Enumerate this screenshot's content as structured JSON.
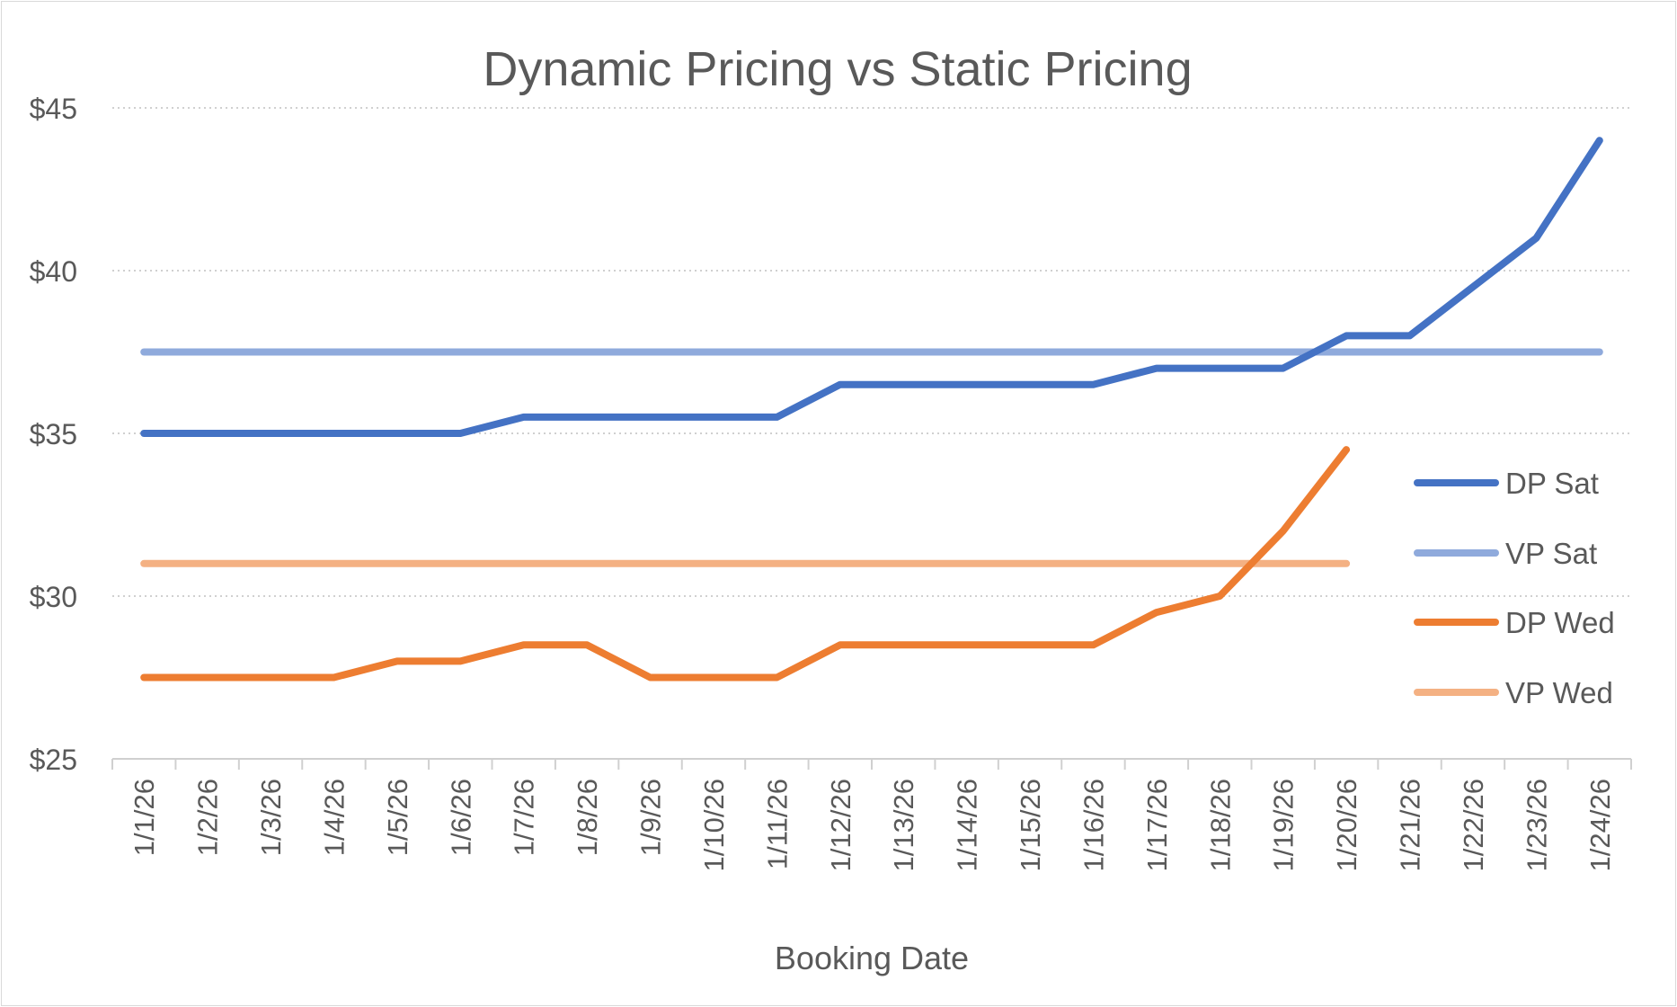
{
  "chart_data": {
    "type": "line",
    "title": "Dynamic Pricing vs Static Pricing",
    "xlabel": "Booking Date",
    "ylabel": "",
    "categories": [
      "1/1/26",
      "1/2/26",
      "1/3/26",
      "1/4/26",
      "1/5/26",
      "1/6/26",
      "1/7/26",
      "1/8/26",
      "1/9/26",
      "1/10/26",
      "1/11/26",
      "1/12/26",
      "1/13/26",
      "1/14/26",
      "1/15/26",
      "1/16/26",
      "1/17/26",
      "1/18/26",
      "1/19/26",
      "1/20/26",
      "1/21/26",
      "1/22/26",
      "1/23/26",
      "1/24/26"
    ],
    "ylim": [
      25,
      45
    ],
    "yticks": [
      25,
      30,
      35,
      40,
      45
    ],
    "ytick_labels": [
      "$25",
      "$30",
      "$35",
      "$40",
      "$45"
    ],
    "grid": "horizontal dotted",
    "legend_position": "right",
    "series": [
      {
        "name": "DP Sat",
        "color": "#4472C4",
        "values": [
          35,
          35,
          35,
          35,
          35,
          35,
          35.5,
          35.5,
          35.5,
          35.5,
          35.5,
          36.5,
          36.5,
          36.5,
          36.5,
          36.5,
          37,
          37,
          37,
          38,
          38,
          39.5,
          41,
          44
        ]
      },
      {
        "name": "VP Sat",
        "color": "#8FAADC",
        "values": [
          37.5,
          37.5,
          37.5,
          37.5,
          37.5,
          37.5,
          37.5,
          37.5,
          37.5,
          37.5,
          37.5,
          37.5,
          37.5,
          37.5,
          37.5,
          37.5,
          37.5,
          37.5,
          37.5,
          37.5,
          37.5,
          37.5,
          37.5,
          37.5
        ]
      },
      {
        "name": "DP Wed",
        "color": "#ED7D31",
        "values": [
          27.5,
          27.5,
          27.5,
          27.5,
          28,
          28,
          28.5,
          28.5,
          27.5,
          27.5,
          27.5,
          28.5,
          28.5,
          28.5,
          28.5,
          28.5,
          29.5,
          30,
          32,
          34.5,
          null,
          null,
          null,
          null
        ]
      },
      {
        "name": "VP Wed",
        "color": "#F4B183",
        "values": [
          31,
          31,
          31,
          31,
          31,
          31,
          31,
          31,
          31,
          31,
          31,
          31,
          31,
          31,
          31,
          31,
          31,
          31,
          31,
          31,
          null,
          null,
          null,
          null
        ]
      }
    ]
  }
}
